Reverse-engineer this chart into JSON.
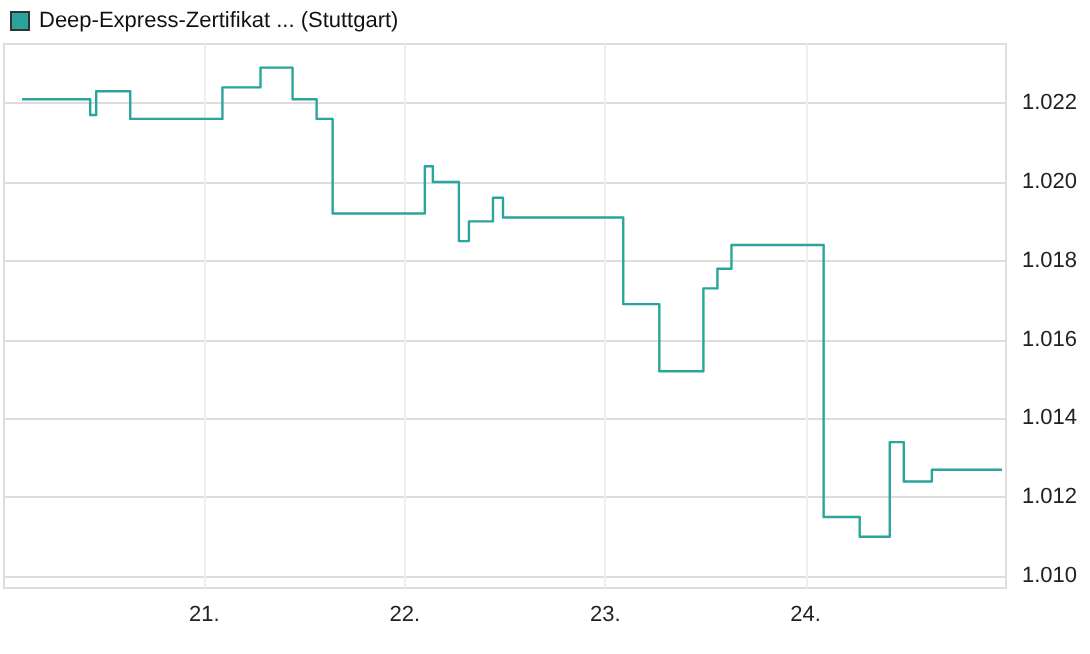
{
  "chart_data": {
    "type": "step",
    "legend": "top left",
    "grid": true,
    "xlim": [
      20,
      25
    ],
    "xticks": [
      {
        "value": 21,
        "label": "21."
      },
      {
        "value": 22,
        "label": "22."
      },
      {
        "value": 23,
        "label": "23."
      },
      {
        "value": 24,
        "label": "24."
      }
    ],
    "ylim": [
      1.0097,
      1.0235
    ],
    "yticks": [
      {
        "value": 1.01,
        "label": "1.010"
      },
      1.012,
      1.014,
      1.016,
      1.018,
      {
        "value": 1.02,
        "label": "1.020"
      },
      1.022
    ],
    "series": [
      {
        "name": "Deep-Express-Zertifikat ... (Stuttgart)",
        "color": "#2aa59b",
        "x": [
          20.09,
          20.43,
          20.46,
          20.63,
          21.09,
          21.28,
          21.44,
          21.56,
          21.64,
          22.1,
          22.14,
          22.27,
          22.32,
          22.44,
          22.49,
          23.09,
          23.27,
          23.49,
          23.56,
          23.63,
          24.09,
          24.27,
          24.42,
          24.49,
          24.63,
          24.98
        ],
        "values": [
          1.0221,
          1.0217,
          1.0223,
          1.0216,
          1.0224,
          1.0229,
          1.0221,
          1.0216,
          1.0192,
          1.0204,
          1.02,
          1.0185,
          1.019,
          1.0196,
          1.0191,
          1.0169,
          1.0152,
          1.0173,
          1.0178,
          1.0184,
          1.0115,
          1.011,
          1.0134,
          1.0124,
          1.0127,
          1.0127
        ]
      }
    ]
  }
}
